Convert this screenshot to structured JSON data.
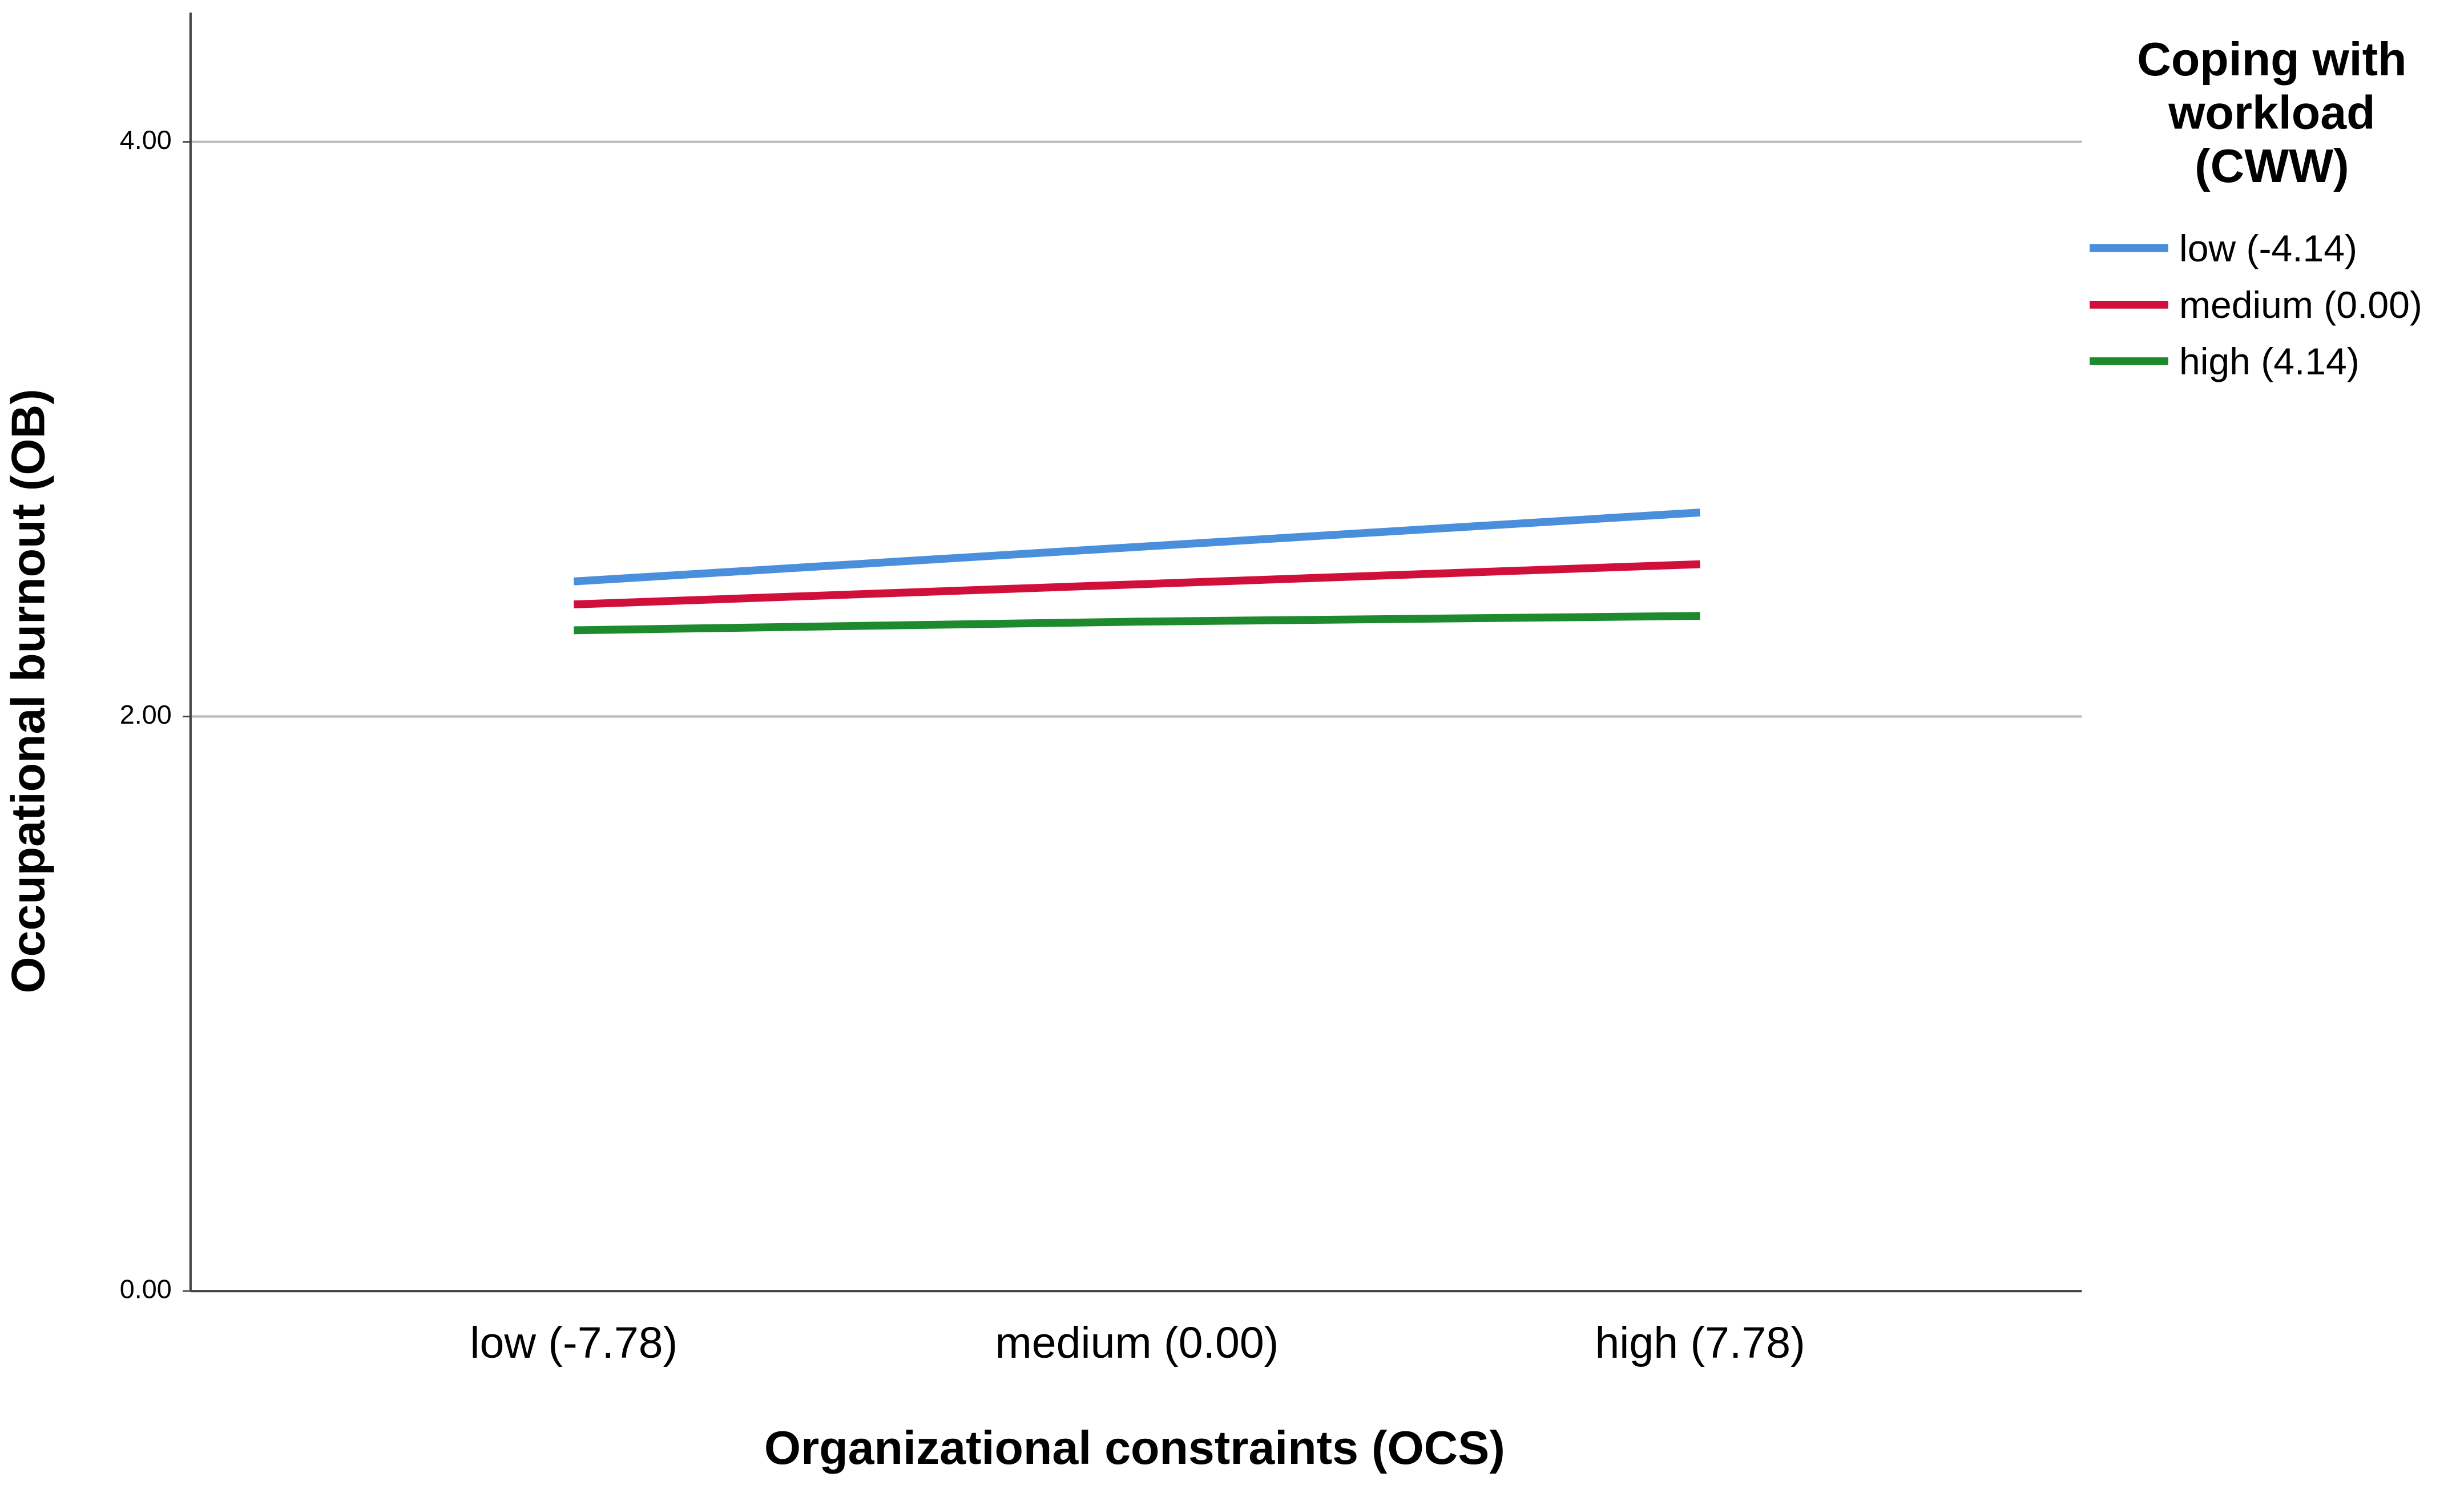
{
  "chart_data": {
    "type": "line",
    "xlabel": "Organizational constraints (OCS)",
    "ylabel": "Occupational burnout (OB)",
    "categories": [
      "low (-7.78)",
      "medium (0.00)",
      "high (7.78)"
    ],
    "series": [
      {
        "name": "low (-4.14)",
        "color": "#4a8fdb",
        "values": [
          2.47,
          2.59,
          2.71
        ]
      },
      {
        "name": "medium (0.00)",
        "color": "#d0103a",
        "values": [
          2.39,
          2.46,
          2.53
        ]
      },
      {
        "name": "high (4.14)",
        "color": "#1e8a2e",
        "values": [
          2.3,
          2.33,
          2.35
        ]
      }
    ],
    "ylim": [
      0,
      4.45
    ],
    "yticks": [
      {
        "value": 0,
        "label": "0.00"
      },
      {
        "value": 2,
        "label": "2.00"
      },
      {
        "value": 4,
        "label": "4.00"
      }
    ],
    "grid": true,
    "legend_title": [
      "Coping with",
      "workload",
      "(CWW)"
    ],
    "legend": "right"
  }
}
